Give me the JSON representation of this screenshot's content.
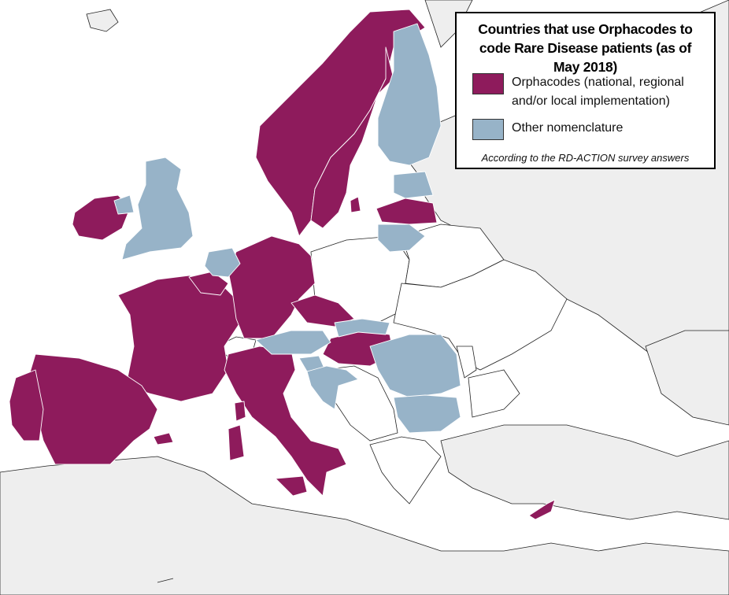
{
  "legend": {
    "title": "Countries that use Orphacodes to code Rare Disease patients (as of May 2018)",
    "items": [
      {
        "label": "Orphacodes (national, regional and/or local implementation)",
        "color": "#8e1b5c"
      },
      {
        "label": "Other nomenclature",
        "color": "#97b3c8"
      }
    ],
    "note": "According to the RD-ACTION survey answers"
  },
  "map": {
    "orphacodes_color": "#8e1b5c",
    "other_nomenclature_color": "#97b3c8",
    "non_survey_land_color": "#eeeeee",
    "sea_color": "#ffffff",
    "orphacodes_countries": [
      "Norway",
      "Sweden",
      "Ireland",
      "France",
      "Spain",
      "Portugal",
      "Belgium",
      "Luxembourg",
      "Germany",
      "Czech Republic",
      "Hungary",
      "Italy",
      "Latvia",
      "Cyprus",
      "Malta"
    ],
    "other_nomenclature_countries": [
      "Finland",
      "Estonia",
      "Lithuania",
      "United Kingdom",
      "Northern Ireland",
      "Netherlands",
      "Austria",
      "Slovakia",
      "Slovenia",
      "Croatia",
      "Romania",
      "Bulgaria"
    ]
  }
}
